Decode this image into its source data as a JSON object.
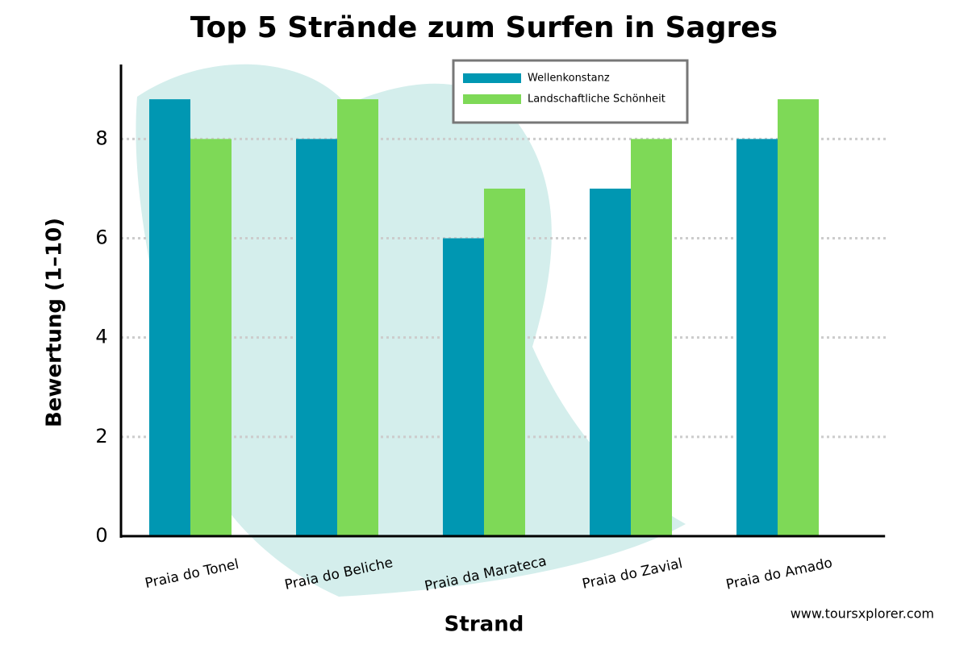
{
  "chart_data": {
    "type": "bar",
    "title": "Top 5 Strände zum Surfen in Sagres",
    "x_label": "Strand",
    "y_label": "Bewertung (1–10)",
    "categories": [
      "Praia do Tonel",
      "Praia do Beliche",
      "Praia da Marateca",
      "Praia do Zavial",
      "Praia do Amado"
    ],
    "series": [
      {
        "name": "Wellenkonstanz",
        "color": "#0097b2",
        "values": [
          8.8,
          8,
          6,
          7,
          8
        ]
      },
      {
        "name": "Landschaftliche Schönheit",
        "color": "#7ed957",
        "values": [
          8,
          8.8,
          7,
          8,
          8.8
        ]
      }
    ],
    "ylim": [
      0,
      9.5
    ],
    "yticks": [
      0,
      2,
      4,
      6,
      8
    ],
    "grid": true,
    "legend": "upper center",
    "watermark": "www.toursxplorer.com"
  }
}
